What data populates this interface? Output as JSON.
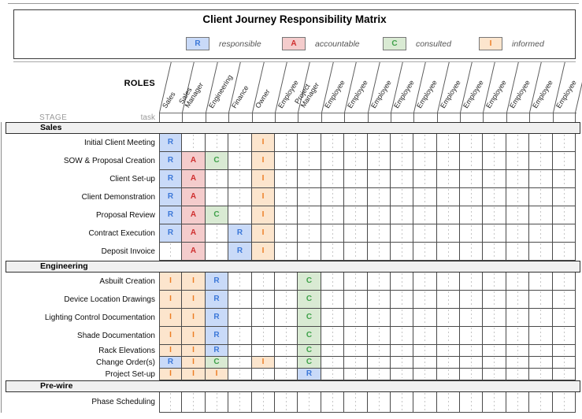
{
  "title": "Client Journey Responsibility Matrix",
  "roles_label": "ROLES",
  "stage_label": "STAGE",
  "task_label": "task",
  "legend": [
    {
      "letter": "R",
      "type": "responsible",
      "label": "responsible"
    },
    {
      "letter": "A",
      "type": "accountable",
      "label": "accountable"
    },
    {
      "letter": "C",
      "type": "consulted",
      "label": "consulted"
    },
    {
      "letter": "I",
      "type": "informed",
      "label": "informed"
    }
  ],
  "colors": {
    "responsible_bg": "#c9daf8",
    "responsible_fg": "#3c78d8",
    "accountable_bg": "#f4cccc",
    "accountable_fg": "#cf2f2f",
    "consulted_bg": "#d9ead3",
    "consulted_fg": "#3fa14a",
    "informed_bg": "#fce5cd",
    "informed_fg": "#ed7d23"
  },
  "columns": [
    "Sales",
    "Sales Manager",
    "Engineering",
    "Finance",
    "Owner",
    "Employee",
    "Project Manager",
    "Employee",
    "Employee",
    "Employee",
    "Employee",
    "Employee",
    "Employee",
    "Employee",
    "Employee",
    "Employee",
    "Employee",
    "Employee"
  ],
  "sections": [
    {
      "name": "Sales",
      "rows": [
        {
          "task": "Initial Client Meeting",
          "cells": {
            "0": "R",
            "4": "I"
          }
        },
        {
          "task": "SOW & Proposal Creation",
          "cells": {
            "0": "R",
            "1": "A",
            "2": "C",
            "4": "I"
          }
        },
        {
          "task": "Client Set-up",
          "cells": {
            "0": "R",
            "1": "A",
            "4": "I"
          }
        },
        {
          "task": "Client Demonstration",
          "cells": {
            "0": "R",
            "1": "A",
            "4": "I"
          }
        },
        {
          "task": "Proposal Review",
          "cells": {
            "0": "R",
            "1": "A",
            "2": "C",
            "4": "I"
          }
        },
        {
          "task": "Contract Execution",
          "cells": {
            "0": "R",
            "1": "A",
            "3": "R",
            "4": "I"
          }
        },
        {
          "task": "Deposit Invoice",
          "cells": {
            "1": "A",
            "3": "R",
            "4": "I"
          }
        }
      ]
    },
    {
      "name": "Engineering",
      "rows": [
        {
          "task": "Asbuilt Creation",
          "cells": {
            "0": "I",
            "1": "I",
            "2": "R",
            "6": "C"
          }
        },
        {
          "task": "Device Location Drawings",
          "cells": {
            "0": "I",
            "1": "I",
            "2": "R",
            "6": "C"
          }
        },
        {
          "task": "Lighting Control Documentation",
          "cells": {
            "0": "I",
            "1": "I",
            "2": "R",
            "6": "C"
          }
        },
        {
          "task": "Shade Documentation",
          "cells": {
            "0": "I",
            "1": "I",
            "2": "R",
            "6": "C"
          }
        },
        {
          "task": "Rack Elevations",
          "cells": {
            "0": "I",
            "1": "I",
            "2": "R",
            "6": "C"
          }
        },
        {
          "task": "Change Order(s)",
          "cells": {
            "0": "R",
            "1": "I",
            "2": "C",
            "4": "I",
            "6": "C"
          }
        },
        {
          "task": "Project Set-up",
          "cells": {
            "0": "I",
            "1": "I",
            "2": "I",
            "6": "R"
          }
        }
      ]
    },
    {
      "name": "Pre-wire",
      "rows": [
        {
          "task": "Phase Scheduling",
          "cells": {}
        }
      ]
    }
  ]
}
